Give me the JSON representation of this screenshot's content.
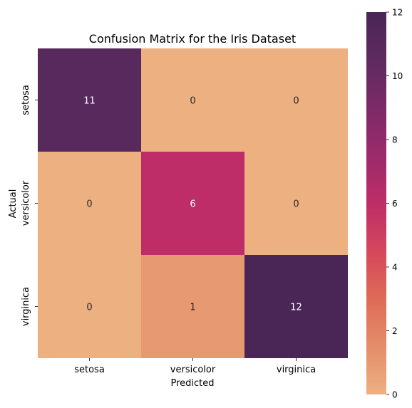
{
  "chart_data": {
    "type": "heatmap",
    "title": "Confusion Matrix for the Iris Dataset",
    "xlabel": "Predicted",
    "ylabel": "Actual",
    "x_categories": [
      "setosa",
      "versicolor",
      "virginica"
    ],
    "y_categories": [
      "setosa",
      "versicolor",
      "virginica"
    ],
    "values": [
      [
        11,
        0,
        0
      ],
      [
        0,
        6,
        0
      ],
      [
        0,
        1,
        12
      ]
    ],
    "colorbar": {
      "range": [
        0,
        12
      ],
      "ticks": [
        0,
        2,
        4,
        6,
        8,
        10,
        12
      ],
      "colormap": "flare",
      "color_stops": [
        "#edb081",
        "#e48d69",
        "#de6a57",
        "#d5475c",
        "#be2d67",
        "#9c2a6b",
        "#7c2a68",
        "#5e2a5f",
        "#4a2656"
      ]
    }
  }
}
